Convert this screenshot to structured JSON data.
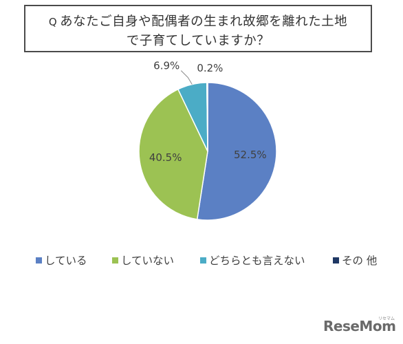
{
  "question": {
    "prefix": "Q",
    "line1": "あなたご自身や配偶者の生まれ故郷を離れた土地",
    "line2": "で子育てしていますか？"
  },
  "chart_data": {
    "type": "pie",
    "title": "Q あなたご自身や配偶者の生まれ故郷を離れた土地で子育てしていますか？",
    "categories": [
      "している",
      "していない",
      "どちらとも言えない",
      "その 他"
    ],
    "values": [
      52.5,
      40.5,
      6.9,
      0.2
    ],
    "data_labels": [
      "52.5%",
      "40.5%",
      "6.9%",
      "0.2%"
    ],
    "colors": [
      "#5b80c4",
      "#9cc253",
      "#4bacc6",
      "#1f3864"
    ],
    "legend_position": "bottom"
  },
  "logo": {
    "text": "ReseMom",
    "subtext": "リセマム"
  }
}
